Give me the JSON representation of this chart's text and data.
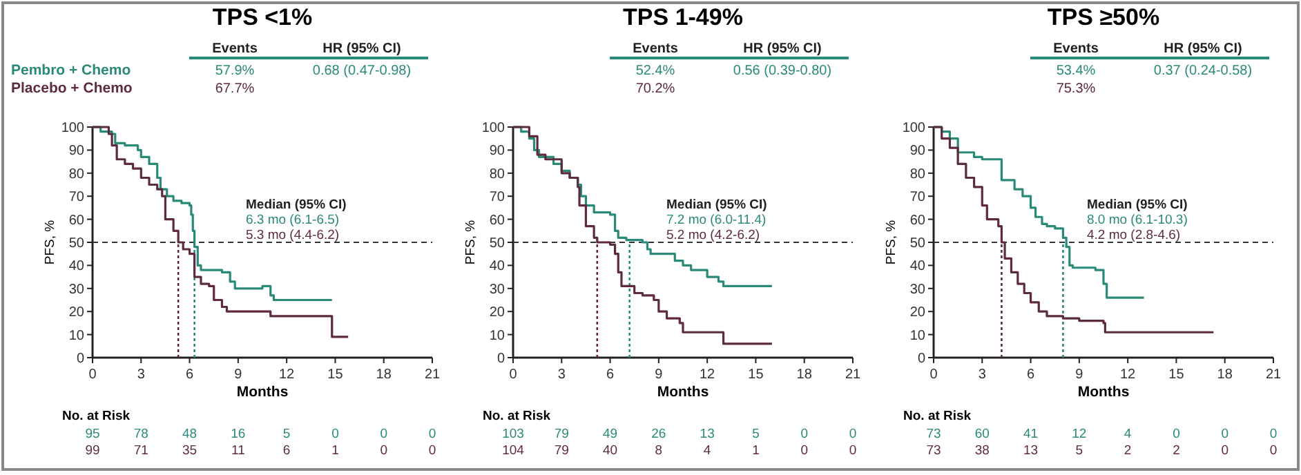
{
  "chart_data": [
    {
      "type": "step",
      "title": "TPS <1%",
      "xlabel": "Months",
      "ylabel": "PFS, %",
      "xlim": [
        0,
        21
      ],
      "xticks": [
        0,
        3,
        6,
        9,
        12,
        15,
        18,
        21
      ],
      "ylim": [
        0,
        100
      ],
      "yticks": [
        0,
        10,
        20,
        30,
        40,
        50,
        60,
        70,
        80,
        90,
        100
      ],
      "legend": "top left",
      "grid": false,
      "series": [
        {
          "name": "Pembro + Chemo",
          "color": "#2a8a78",
          "x": [
            0,
            0.5,
            1.2,
            1.4,
            2,
            2.8,
            3,
            3.5,
            4,
            4.2,
            4.6,
            5,
            5.5,
            6,
            6.1,
            6.2,
            6.3,
            6.5,
            6.7,
            8,
            8.5,
            8.8,
            10.5,
            11,
            11.2,
            14.8
          ],
          "values": [
            100,
            98,
            97,
            93,
            92,
            90,
            87,
            84,
            78,
            73,
            70,
            68,
            67,
            66,
            62,
            55,
            48,
            40,
            38,
            37,
            33,
            30,
            31,
            27,
            25,
            25
          ]
        },
        {
          "name": "Placebo + Chemo",
          "color": "#5e2a40",
          "x": [
            0,
            1,
            1.2,
            1.5,
            2,
            2.5,
            3,
            3.5,
            4,
            4.3,
            4.5,
            5,
            5.3,
            5.6,
            6,
            6.3,
            6.7,
            7.2,
            7.5,
            8,
            8.3,
            11,
            14.8,
            15.8
          ],
          "values": [
            100,
            97,
            92,
            86,
            84,
            82,
            78,
            75,
            73,
            70,
            60,
            55,
            50,
            47,
            45,
            35,
            32,
            31,
            25,
            22,
            20,
            18,
            9,
            9
          ]
        }
      ],
      "ref_lines": [
        {
          "axis": "y",
          "value": 50,
          "line_style": "dashed",
          "color": "#333333"
        },
        {
          "axis": "x",
          "value": 6.3,
          "line_style": "dotted",
          "color": "#2a8a78"
        },
        {
          "axis": "x",
          "value": 5.3,
          "line_style": "dotted",
          "color": "#5e2a40"
        }
      ],
      "annotations": [
        "Events",
        "HR (95% CI)",
        "57.9%",
        "0.68 (0.47-0.98)",
        "67.7%",
        "Median (95% CI)",
        "6.3 mo (6.1-6.5)",
        "5.3 mo (4.4-6.2)",
        "No. at Risk",
        "95 78 48 16 5 0 0 0",
        "99 71 35 11 6 1 0 0"
      ]
    },
    {
      "type": "step",
      "title": "TPS 1-49%",
      "xlabel": "Months",
      "ylabel": "PFS, %",
      "xlim": [
        0,
        21
      ],
      "xticks": [
        0,
        3,
        6,
        9,
        12,
        15,
        18,
        21
      ],
      "ylim": [
        0,
        100
      ],
      "yticks": [
        0,
        10,
        20,
        30,
        40,
        50,
        60,
        70,
        80,
        90,
        100
      ],
      "grid": false,
      "series": [
        {
          "color": "#2a8a78",
          "x": [
            0,
            0.5,
            1,
            1.3,
            1.6,
            2.5,
            3,
            3.5,
            4,
            4.2,
            4.5,
            5,
            6,
            6.3,
            6.5,
            7,
            8,
            8.3,
            8.5,
            10,
            10.5,
            11,
            12,
            12.7,
            13,
            16
          ],
          "values": [
            100,
            98,
            95,
            90,
            87,
            84,
            81,
            78,
            75,
            70,
            66,
            63,
            62,
            55,
            52,
            51,
            50,
            47,
            45,
            42,
            40,
            38,
            35,
            33,
            31,
            31
          ]
        },
        {
          "color": "#5e2a40",
          "x": [
            0,
            1,
            1.5,
            2,
            3,
            3.5,
            4,
            4.1,
            4.5,
            5,
            5.2,
            6,
            6.3,
            6.5,
            6.7,
            7.5,
            8,
            8.7,
            9,
            9.5,
            10.3,
            10.5,
            13,
            16
          ],
          "values": [
            100,
            96,
            88,
            86,
            80,
            78,
            74,
            66,
            57,
            52,
            50,
            49,
            45,
            37,
            31,
            28,
            27,
            25,
            20,
            17,
            15,
            11,
            6,
            6
          ]
        }
      ],
      "ref_lines": [
        {
          "axis": "y",
          "value": 50,
          "line_style": "dashed",
          "color": "#333333"
        },
        {
          "axis": "x",
          "value": 7.2,
          "line_style": "dotted",
          "color": "#2a8a78"
        },
        {
          "axis": "x",
          "value": 5.2,
          "line_style": "dotted",
          "color": "#5e2a40"
        }
      ],
      "annotations": [
        "Events",
        "HR (95% CI)",
        "52.4%",
        "0.56 (0.39-0.80)",
        "70.2%",
        "Median (95% CI)",
        "7.2 mo (6.0-11.4)",
        "5.2 mo (4.2-6.2)",
        "No. at Risk",
        "103 79 49 26 13 5 0 0",
        "104 79 40 8 4 1 0 0"
      ]
    },
    {
      "type": "step",
      "title": "TPS ≥50%",
      "xlabel": "Months",
      "ylabel": "PFS, %",
      "xlim": [
        0,
        21
      ],
      "xticks": [
        0,
        3,
        6,
        9,
        12,
        15,
        18,
        21
      ],
      "ylim": [
        0,
        100
      ],
      "yticks": [
        0,
        10,
        20,
        30,
        40,
        50,
        60,
        70,
        80,
        90,
        100
      ],
      "grid": false,
      "series": [
        {
          "color": "#2a8a78",
          "x": [
            0,
            0.5,
            1,
            1.5,
            2.5,
            3,
            4.1,
            4.2,
            5,
            5.5,
            6,
            6.3,
            6.7,
            7,
            7.5,
            8,
            8.2,
            8.4,
            8.6,
            10,
            10.5,
            10.7,
            13
          ],
          "values": [
            100,
            98,
            95,
            89,
            87,
            86,
            86,
            77,
            73,
            70,
            65,
            61,
            58,
            57,
            56,
            52,
            48,
            40,
            39,
            38,
            32,
            26,
            26
          ]
        },
        {
          "color": "#5e2a40",
          "x": [
            0,
            0.5,
            1,
            1.5,
            2,
            2.5,
            3,
            3.3,
            4,
            4.2,
            4.4,
            4.8,
            5.2,
            5.6,
            6,
            6.5,
            7,
            8,
            9,
            10.5,
            10.6,
            17.3
          ],
          "values": [
            100,
            95,
            91,
            84,
            78,
            74,
            66,
            60,
            57,
            50,
            43,
            37,
            32,
            28,
            24,
            20,
            18,
            17,
            16,
            15,
            11,
            11
          ]
        }
      ],
      "ref_lines": [
        {
          "axis": "y",
          "value": 50,
          "line_style": "dashed",
          "color": "#333333"
        },
        {
          "axis": "x",
          "value": 8.0,
          "line_style": "dotted",
          "color": "#2a8a78"
        },
        {
          "axis": "x",
          "value": 4.2,
          "line_style": "dotted",
          "color": "#5e2a40"
        }
      ],
      "annotations": [
        "Events",
        "HR (95% CI)",
        "53.4%",
        "0.37 (0.24-0.58)",
        "75.3%",
        "Median (95% CI)",
        "8.0 mo (6.1-10.3)",
        "4.2 mo (2.8-4.6)",
        "No. at Risk",
        "73 60 41 12 4 0 0 0",
        "73 38 13 5 2 2 0 0"
      ]
    }
  ]
}
